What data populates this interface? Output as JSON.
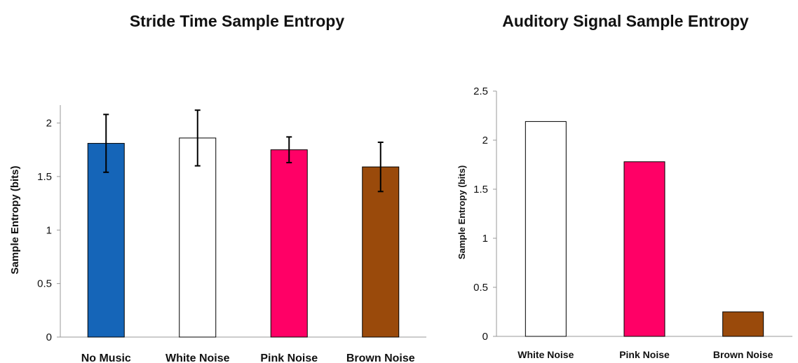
{
  "chart_data": [
    {
      "type": "bar",
      "title": "Stride Time Sample Entropy",
      "ylabel": "Sample Entropy (bits)",
      "xlabel": "",
      "categories": [
        "No Music",
        "White Noise",
        "Pink Noise",
        "Brown Noise"
      ],
      "values": [
        1.81,
        1.86,
        1.75,
        1.59
      ],
      "error": [
        0.27,
        0.26,
        0.12,
        0.23
      ],
      "colors": [
        "#1565b8",
        "#ffffff",
        "#ff0066",
        "#9a4a0b"
      ],
      "yticks": [
        "0",
        "0.5",
        "1",
        "1.5",
        "2"
      ],
      "ylim": [
        0,
        2.2
      ],
      "grid": false
    },
    {
      "type": "bar",
      "title": "Auditory Signal Sample Entropy",
      "ylabel": "Sample Entropy (bits)",
      "xlabel": "",
      "categories": [
        "White Noise",
        "Pink Noise",
        "Brown Noise"
      ],
      "values": [
        2.19,
        1.78,
        0.25
      ],
      "colors": [
        "#ffffff",
        "#ff0066",
        "#9a4a0b"
      ],
      "yticks": [
        "0",
        "0.5",
        "1",
        "1.5",
        "2",
        "2.5"
      ],
      "ylim": [
        0,
        2.5
      ],
      "grid": false
    }
  ]
}
